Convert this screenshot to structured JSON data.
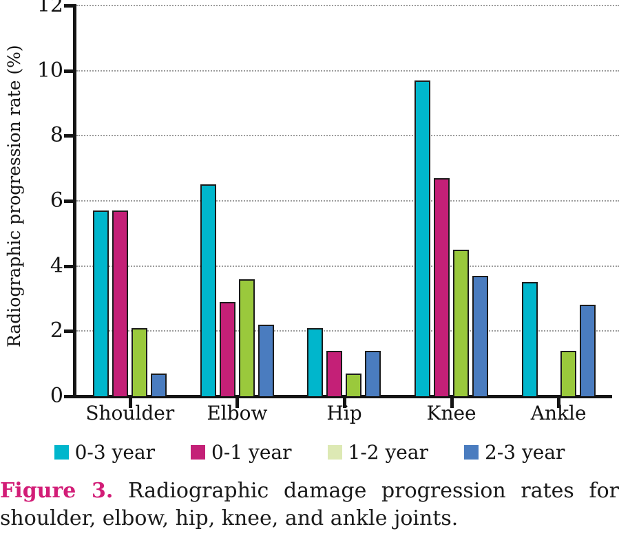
{
  "chart_data": {
    "type": "bar",
    "title": "",
    "xlabel": "",
    "ylabel": "Radiographic progression rate (%)",
    "ylim": [
      0,
      12
    ],
    "yticks": [
      0,
      2,
      4,
      6,
      8,
      10,
      12
    ],
    "grid": "horizontal dotted gridlines at each y tick",
    "legend_position": "bottom",
    "categories": [
      "Shoulder",
      "Elbow",
      "Hip",
      "Knee",
      "Ankle"
    ],
    "series": [
      {
        "name": "0-3 year",
        "color": "#00b6cc",
        "legend_color": "#00b6cc",
        "values": [
          5.7,
          6.5,
          2.1,
          9.7,
          3.5
        ]
      },
      {
        "name": "0-1 year",
        "color": "#c42077",
        "legend_color": "#c42077",
        "values": [
          5.7,
          2.9,
          1.4,
          6.7,
          0
        ]
      },
      {
        "name": "1-2 year",
        "color": "#9ac93c",
        "legend_color": "#dde9b4",
        "values": [
          2.1,
          3.6,
          0.7,
          4.5,
          1.4
        ]
      },
      {
        "name": "2-3 year",
        "color": "#4a7cbf",
        "legend_color": "#4a7cbf",
        "values": [
          0.7,
          2.2,
          1.4,
          3.7,
          2.8
        ]
      }
    ]
  },
  "caption": {
    "label": "Figure 3.",
    "line1": "Radiographic damage progression rates for",
    "line2": "shoulder, elbow, hip, knee, and ankle joints."
  }
}
